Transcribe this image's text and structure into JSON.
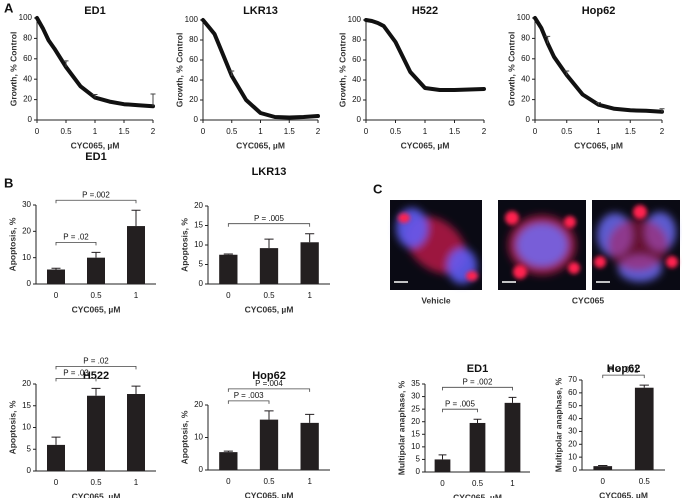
{
  "panel_labels": [
    "A",
    "B",
    "C"
  ],
  "images": {
    "labels": [
      "Vehicle",
      "CYC065"
    ]
  },
  "chart_data": [
    {
      "type": "line",
      "title": "ED1",
      "x_label": "CYC065, µM",
      "y_label": "Growth, % Control",
      "color": "#111111",
      "x": [
        0,
        0.1,
        0.2,
        0.3,
        0.5,
        0.75,
        1,
        1.25,
        1.5,
        1.75,
        2
      ],
      "values": [
        100,
        90,
        78,
        70,
        52,
        33,
        22,
        18,
        15.5,
        14.5,
        13.5
      ],
      "errors": [
        null,
        null,
        null,
        null,
        6,
        null,
        3,
        null,
        null,
        null,
        12
      ],
      "xlim": [
        0,
        2
      ],
      "xticks": [
        0,
        0.5,
        1,
        1.5,
        2
      ],
      "ylim": [
        0,
        100
      ],
      "yticks": [
        0,
        20,
        40,
        60,
        80,
        100
      ]
    },
    {
      "type": "line",
      "title": "LKR13",
      "x_label": "CYC065, µM",
      "y_label": "Growth, % Control",
      "color": "#111111",
      "x": [
        0,
        0.1,
        0.2,
        0.3,
        0.5,
        0.75,
        1,
        1.25,
        1.5,
        1.75,
        2
      ],
      "values": [
        100,
        93,
        86,
        72,
        44,
        20,
        7,
        3,
        2.5,
        3,
        4
      ],
      "errors": [
        null,
        null,
        null,
        null,
        5,
        null,
        null,
        null,
        null,
        null,
        null
      ],
      "xlim": [
        0,
        2
      ],
      "xticks": [
        0,
        0.5,
        1,
        1.5,
        2
      ],
      "ylim": [
        0,
        100
      ],
      "yticks": [
        0,
        20,
        40,
        60,
        80,
        100
      ]
    },
    {
      "type": "line",
      "title": "H522",
      "x_label": "CYC065, µM",
      "y_label": "Growth, % Control",
      "color": "#111111",
      "x": [
        0,
        0.1,
        0.2,
        0.3,
        0.5,
        0.75,
        1,
        1.25,
        1.5,
        1.75,
        2
      ],
      "values": [
        100,
        99,
        97,
        94,
        78,
        48,
        32,
        30,
        30,
        30.5,
        31
      ],
      "errors": [
        null,
        null,
        null,
        null,
        null,
        null,
        null,
        null,
        null,
        null,
        null
      ],
      "xlim": [
        0,
        2
      ],
      "xticks": [
        0,
        0.5,
        1,
        1.5,
        2
      ],
      "ylim": [
        0,
        100
      ],
      "yticks": [
        0,
        20,
        40,
        60,
        80,
        100
      ]
    },
    {
      "type": "line",
      "title": "Hop62",
      "x_label": "CYC065, µM",
      "y_label": "Growth, % Control",
      "color": "#111111",
      "x": [
        0,
        0.1,
        0.2,
        0.3,
        0.5,
        0.75,
        1,
        1.25,
        1.5,
        1.75,
        2
      ],
      "values": [
        100,
        90,
        75,
        62,
        44,
        25,
        15,
        11,
        9.5,
        9,
        8
      ],
      "errors": [
        null,
        null,
        7,
        null,
        4,
        null,
        2,
        null,
        null,
        null,
        3
      ],
      "xlim": [
        0,
        2
      ],
      "xticks": [
        0,
        0.5,
        1,
        1.5,
        2
      ],
      "ylim": [
        0,
        100
      ],
      "yticks": [
        0,
        20,
        40,
        60,
        80,
        100
      ]
    },
    {
      "type": "bar",
      "title": "ED1",
      "x_label": "CYC065, µM",
      "y_label": "Apoptosis, %",
      "color": "#231f20",
      "categories": [
        "0",
        "0.5",
        "1"
      ],
      "values": [
        5.5,
        10,
        22
      ],
      "errors": [
        0.5,
        2,
        6
      ],
      "ylim": [
        0,
        30
      ],
      "yticks": [
        0,
        10,
        20,
        30
      ],
      "annotations": [
        {
          "label": "P = .02",
          "between": [
            "0",
            "0.5"
          ]
        },
        {
          "label": "P =.002",
          "between": [
            "0",
            "1"
          ]
        }
      ]
    },
    {
      "type": "bar",
      "title": "LKR13",
      "x_label": "CYC065, µM",
      "y_label": "Apoptosis, %",
      "color": "#231f20",
      "categories": [
        "0",
        "0.5",
        "1"
      ],
      "values": [
        7.5,
        9.2,
        10.7
      ],
      "errors": [
        0.2,
        2.3,
        2.2
      ],
      "ylim": [
        0,
        20
      ],
      "yticks": [
        0,
        5,
        10,
        15,
        20
      ],
      "annotations": [
        {
          "label": "P = .005",
          "between": [
            "0",
            "1"
          ]
        }
      ]
    },
    {
      "type": "bar",
      "title": "H522",
      "x_label": "CYC065, µM",
      "y_label": "Apoptosis, %",
      "color": "#231f20",
      "categories": [
        "0",
        "0.5",
        "1"
      ],
      "values": [
        6,
        17.3,
        17.7
      ],
      "errors": [
        1.8,
        1.7,
        1.8
      ],
      "ylim": [
        0,
        20
      ],
      "yticks": [
        0,
        5,
        10,
        15,
        20
      ],
      "annotations": [
        {
          "label": "P = .03",
          "between": [
            "0",
            "0.5"
          ]
        },
        {
          "label": "P = .02",
          "between": [
            "0",
            "1"
          ]
        }
      ]
    },
    {
      "type": "bar",
      "title": "Hop62",
      "x_label": "CYC065, µM",
      "y_label": "Apoptosis, %",
      "color": "#231f20",
      "categories": [
        "0",
        "0.5",
        "1"
      ],
      "values": [
        5.5,
        15.5,
        14.5
      ],
      "errors": [
        0.3,
        2.7,
        2.6
      ],
      "ylim": [
        0,
        20
      ],
      "yticks": [
        0,
        10,
        20
      ],
      "annotations": [
        {
          "label": "P = .003",
          "between": [
            "0",
            "0.5"
          ]
        },
        {
          "label": "P =.004",
          "between": [
            "0",
            "1"
          ]
        }
      ]
    },
    {
      "type": "bar",
      "title": "ED1",
      "x_label": "CYC065, µM",
      "y_label": "Multipolar anaphase, %",
      "color": "#231f20",
      "categories": [
        "0",
        "0.5",
        "1"
      ],
      "values": [
        5,
        19.5,
        27.5
      ],
      "errors": [
        1.8,
        1.5,
        2.2
      ],
      "ylim": [
        0,
        35
      ],
      "yticks": [
        0,
        5,
        10,
        15,
        20,
        25,
        30,
        35
      ],
      "annotations": [
        {
          "label": "P = .005",
          "between": [
            "0",
            "0.5"
          ]
        },
        {
          "label": "P = .002",
          "between": [
            "0",
            "1"
          ]
        }
      ]
    },
    {
      "type": "bar",
      "title": "Hop62",
      "x_label": "CYC065, µM",
      "y_label": "Multipolar anaphase, %",
      "color": "#231f20",
      "categories": [
        "0",
        "0.5"
      ],
      "values": [
        3,
        64
      ],
      "errors": [
        0.5,
        2
      ],
      "ylim": [
        0,
        70
      ],
      "yticks": [
        0,
        10,
        20,
        30,
        40,
        50,
        60,
        70
      ],
      "annotations": [
        {
          "label": "P < .001",
          "between": [
            "0",
            "0.5"
          ]
        }
      ]
    }
  ]
}
